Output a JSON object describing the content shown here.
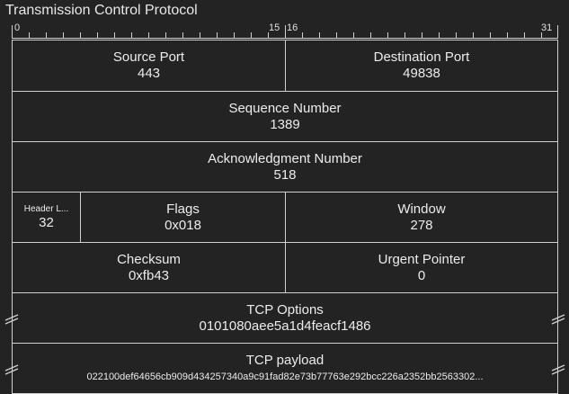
{
  "title": "Transmission Control Protocol",
  "ruler": {
    "labels": {
      "b0": "0",
      "b15": "15",
      "b16": "16",
      "b31": "31"
    }
  },
  "fields": {
    "source_port": {
      "name": "Source Port",
      "value": "443"
    },
    "destination_port": {
      "name": "Destination Port",
      "value": "49838"
    },
    "sequence_number": {
      "name": "Sequence Number",
      "value": "1389"
    },
    "acknowledgment_number": {
      "name": "Acknowledgment Number",
      "value": "518"
    },
    "header_length": {
      "name": "Header L...",
      "value": "32"
    },
    "flags": {
      "name": "Flags",
      "value": "0x018"
    },
    "window": {
      "name": "Window",
      "value": "278"
    },
    "checksum": {
      "name": "Checksum",
      "value": "0xfb43"
    },
    "urgent_pointer": {
      "name": "Urgent Pointer",
      "value": "0"
    },
    "tcp_options": {
      "name": "TCP Options",
      "value": "0101080aee5a1d4feacf1486"
    },
    "tcp_payload": {
      "name": "TCP payload",
      "value": "022100def64656cb909d434257340a9c91fad82e73b77763e292bcc226a2352bb2563302..."
    }
  },
  "colors": {
    "background": "#232323",
    "line": "#d0d0d0",
    "text": "#ececec"
  }
}
